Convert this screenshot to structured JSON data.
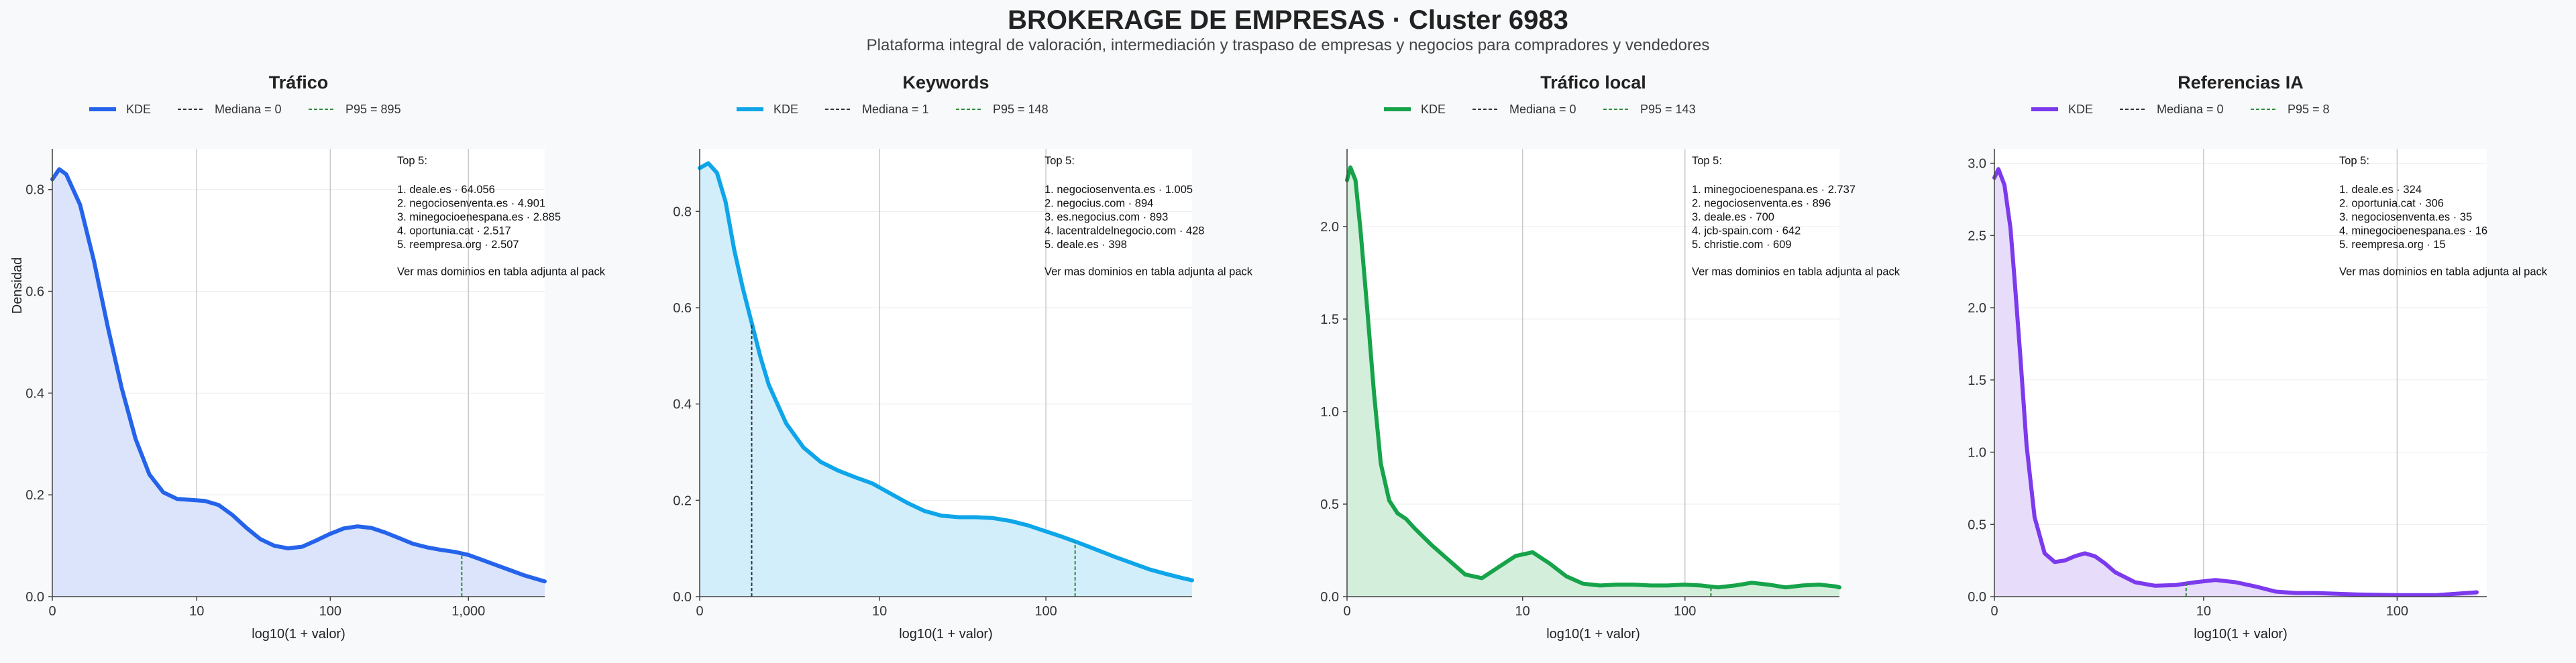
{
  "header": {
    "title": "BROKERAGE DE EMPRESAS · Cluster 6983",
    "subtitle": "Plataforma integral de valoración, intermediación y traspaso de empresas y negocios para compradores y vendedores"
  },
  "shared": {
    "xlabel": "log10(1 + valor)",
    "ylabel": "Densidad",
    "legend_kde": "KDE",
    "median_color": "#333333",
    "p95_color": "#2e8b3a"
  },
  "chart_data": [
    {
      "type": "area",
      "title": "Tráfico",
      "color": "#2563eb",
      "fill": "#dbe4fa",
      "legend": {
        "kde": "KDE",
        "median": "Mediana = 0",
        "p95": "P95 = 895"
      },
      "xlabel": "log10(1 + valor)",
      "ylabel": "Densidad",
      "xlim": [
        0,
        3.55
      ],
      "ylim": [
        0,
        0.88
      ],
      "xticks": [
        {
          "v": 0,
          "label": "0"
        },
        {
          "v": 1.041,
          "label": "10"
        },
        {
          "v": 2.004,
          "label": "100"
        },
        {
          "v": 3.0,
          "label": "1,000"
        }
      ],
      "yticks": [
        {
          "v": 0,
          "label": "0.0"
        },
        {
          "v": 0.2,
          "label": "0.2"
        },
        {
          "v": 0.4,
          "label": "0.4"
        },
        {
          "v": 0.6,
          "label": "0.6"
        },
        {
          "v": 0.8,
          "label": "0.8"
        }
      ],
      "median": 0,
      "p95": 2.952,
      "kde_x": [
        0,
        0.05,
        0.1,
        0.2,
        0.3,
        0.4,
        0.5,
        0.6,
        0.7,
        0.8,
        0.9,
        1.0,
        1.1,
        1.2,
        1.3,
        1.4,
        1.5,
        1.6,
        1.7,
        1.8,
        1.9,
        2.0,
        2.1,
        2.2,
        2.3,
        2.4,
        2.5,
        2.6,
        2.7,
        2.8,
        2.9,
        3.0,
        3.1,
        3.2,
        3.3,
        3.4,
        3.5,
        3.55
      ],
      "kde_y": [
        0.82,
        0.84,
        0.83,
        0.77,
        0.66,
        0.53,
        0.41,
        0.31,
        0.24,
        0.205,
        0.192,
        0.19,
        0.188,
        0.18,
        0.16,
        0.135,
        0.113,
        0.1,
        0.095,
        0.098,
        0.11,
        0.123,
        0.134,
        0.138,
        0.135,
        0.126,
        0.115,
        0.104,
        0.097,
        0.092,
        0.088,
        0.082,
        0.072,
        0.062,
        0.052,
        0.042,
        0.034,
        0.03
      ],
      "top5_title": "Top 5:",
      "top5": [
        "1. deale.es · 64.056",
        "2. negociosenventa.es · 4.901",
        "3. minegocioenespana.es · 2.885",
        "4. oportunia.cat · 2.517",
        "5. reempresa.org · 2.507"
      ],
      "note": "Ver mas dominios en tabla adjunta al pack"
    },
    {
      "type": "area",
      "title": "Keywords",
      "color": "#0ea5e9",
      "fill": "#d2eefb",
      "legend": {
        "kde": "KDE",
        "median": "Mediana = 1",
        "p95": "P95 = 148"
      },
      "xlabel": "log10(1 + valor)",
      "ylabel": "",
      "xlim": [
        0,
        2.85
      ],
      "ylim": [
        0,
        0.93
      ],
      "xticks": [
        {
          "v": 0,
          "label": "0"
        },
        {
          "v": 1.041,
          "label": "10"
        },
        {
          "v": 2.004,
          "label": "100"
        }
      ],
      "yticks": [
        {
          "v": 0,
          "label": "0.0"
        },
        {
          "v": 0.2,
          "label": "0.2"
        },
        {
          "v": 0.4,
          "label": "0.4"
        },
        {
          "v": 0.6,
          "label": "0.6"
        },
        {
          "v": 0.8,
          "label": "0.8"
        }
      ],
      "median": 0.301,
      "p95": 2.173,
      "kde_x": [
        0,
        0.05,
        0.1,
        0.15,
        0.2,
        0.25,
        0.3,
        0.35,
        0.4,
        0.5,
        0.6,
        0.7,
        0.8,
        0.9,
        1.0,
        1.1,
        1.2,
        1.3,
        1.4,
        1.5,
        1.6,
        1.7,
        1.8,
        1.9,
        2.0,
        2.1,
        2.2,
        2.3,
        2.4,
        2.5,
        2.6,
        2.7,
        2.8,
        2.85
      ],
      "kde_y": [
        0.89,
        0.9,
        0.88,
        0.82,
        0.72,
        0.64,
        0.57,
        0.5,
        0.44,
        0.36,
        0.31,
        0.28,
        0.262,
        0.248,
        0.235,
        0.215,
        0.195,
        0.178,
        0.168,
        0.165,
        0.165,
        0.163,
        0.157,
        0.148,
        0.136,
        0.124,
        0.111,
        0.097,
        0.083,
        0.07,
        0.057,
        0.047,
        0.038,
        0.034
      ],
      "top5_title": "Top 5:",
      "top5": [
        "1. negociosenventa.es · 1.005",
        "2. negocius.com · 894",
        "3. es.negocius.com · 893",
        "4. lacentraldelnegocio.com · 428",
        "5. deale.es · 398"
      ],
      "note": "Ver mas dominios en tabla adjunta al pack"
    },
    {
      "type": "area",
      "title": "Tráfico local",
      "color": "#16a34a",
      "fill": "#d4eedc",
      "legend": {
        "kde": "KDE",
        "median": "Mediana = 0",
        "p95": "P95 = 143"
      },
      "xlabel": "log10(1 + valor)",
      "ylabel": "",
      "xlim": [
        0,
        2.92
      ],
      "ylim": [
        0,
        2.42
      ],
      "xticks": [
        {
          "v": 0,
          "label": "0"
        },
        {
          "v": 1.041,
          "label": "10"
        },
        {
          "v": 2.004,
          "label": "100"
        }
      ],
      "yticks": [
        {
          "v": 0,
          "label": "0.0"
        },
        {
          "v": 0.5,
          "label": "0.5"
        },
        {
          "v": 1.0,
          "label": "1.0"
        },
        {
          "v": 1.5,
          "label": "1.5"
        },
        {
          "v": 2.0,
          "label": "2.0"
        }
      ],
      "median": 0,
      "p95": 2.158,
      "kde_x": [
        0,
        0.02,
        0.05,
        0.08,
        0.12,
        0.16,
        0.2,
        0.25,
        0.3,
        0.35,
        0.4,
        0.5,
        0.6,
        0.7,
        0.8,
        0.9,
        1.0,
        1.1,
        1.2,
        1.3,
        1.4,
        1.5,
        1.6,
        1.7,
        1.8,
        1.9,
        2.0,
        2.1,
        2.2,
        2.3,
        2.4,
        2.5,
        2.6,
        2.7,
        2.8,
        2.9,
        2.92
      ],
      "kde_y": [
        2.25,
        2.32,
        2.25,
        1.98,
        1.55,
        1.1,
        0.72,
        0.52,
        0.45,
        0.42,
        0.37,
        0.28,
        0.2,
        0.12,
        0.1,
        0.16,
        0.22,
        0.24,
        0.18,
        0.11,
        0.07,
        0.06,
        0.065,
        0.065,
        0.06,
        0.06,
        0.065,
        0.06,
        0.05,
        0.06,
        0.075,
        0.065,
        0.05,
        0.06,
        0.065,
        0.055,
        0.05
      ],
      "top5_title": "Top 5:",
      "top5": [
        "1. minegocioenespana.es · 2.737",
        "2. negociosenventa.es · 896",
        "3. deale.es · 700",
        "4. jcb-spain.com · 642",
        "5. christie.com · 609"
      ],
      "note": "Ver mas dominios en tabla adjunta al pack"
    },
    {
      "type": "area",
      "title": "Referencias IA",
      "color": "#7c3aed",
      "fill": "#e7dcf9",
      "legend": {
        "kde": "KDE",
        "median": "Mediana = 0",
        "p95": "P95 = 8"
      },
      "xlabel": "log10(1 + valor)",
      "ylabel": "",
      "xlim": [
        0,
        2.45
      ],
      "ylim": [
        0,
        3.1
      ],
      "xticks": [
        {
          "v": 0,
          "label": "0"
        },
        {
          "v": 1.041,
          "label": "10"
        },
        {
          "v": 2.004,
          "label": "100"
        }
      ],
      "yticks": [
        {
          "v": 0,
          "label": "0.0"
        },
        {
          "v": 0.5,
          "label": "0.5"
        },
        {
          "v": 1.0,
          "label": "1.0"
        },
        {
          "v": 1.5,
          "label": "1.5"
        },
        {
          "v": 2.0,
          "label": "2.0"
        },
        {
          "v": 2.5,
          "label": "2.5"
        },
        {
          "v": 3.0,
          "label": "3.0"
        }
      ],
      "median": 0,
      "p95": 0.954,
      "kde_x": [
        0,
        0.02,
        0.05,
        0.08,
        0.1,
        0.13,
        0.16,
        0.2,
        0.25,
        0.3,
        0.35,
        0.4,
        0.45,
        0.5,
        0.55,
        0.6,
        0.7,
        0.8,
        0.9,
        1.0,
        1.1,
        1.2,
        1.3,
        1.4,
        1.5,
        1.6,
        1.8,
        2.0,
        2.2,
        2.4
      ],
      "kde_y": [
        2.9,
        2.96,
        2.85,
        2.55,
        2.2,
        1.65,
        1.05,
        0.55,
        0.3,
        0.24,
        0.25,
        0.28,
        0.3,
        0.28,
        0.23,
        0.17,
        0.1,
        0.075,
        0.08,
        0.1,
        0.115,
        0.1,
        0.07,
        0.035,
        0.025,
        0.025,
        0.015,
        0.01,
        0.01,
        0.03
      ],
      "top5_title": "Top 5:",
      "top5": [
        "1. deale.es · 324",
        "2. oportunia.cat · 306",
        "3. negociosenventa.es · 35",
        "4. minegocioenespana.es · 16",
        "5. reempresa.org · 15"
      ],
      "note": "Ver mas dominios en tabla adjunta al pack"
    }
  ]
}
